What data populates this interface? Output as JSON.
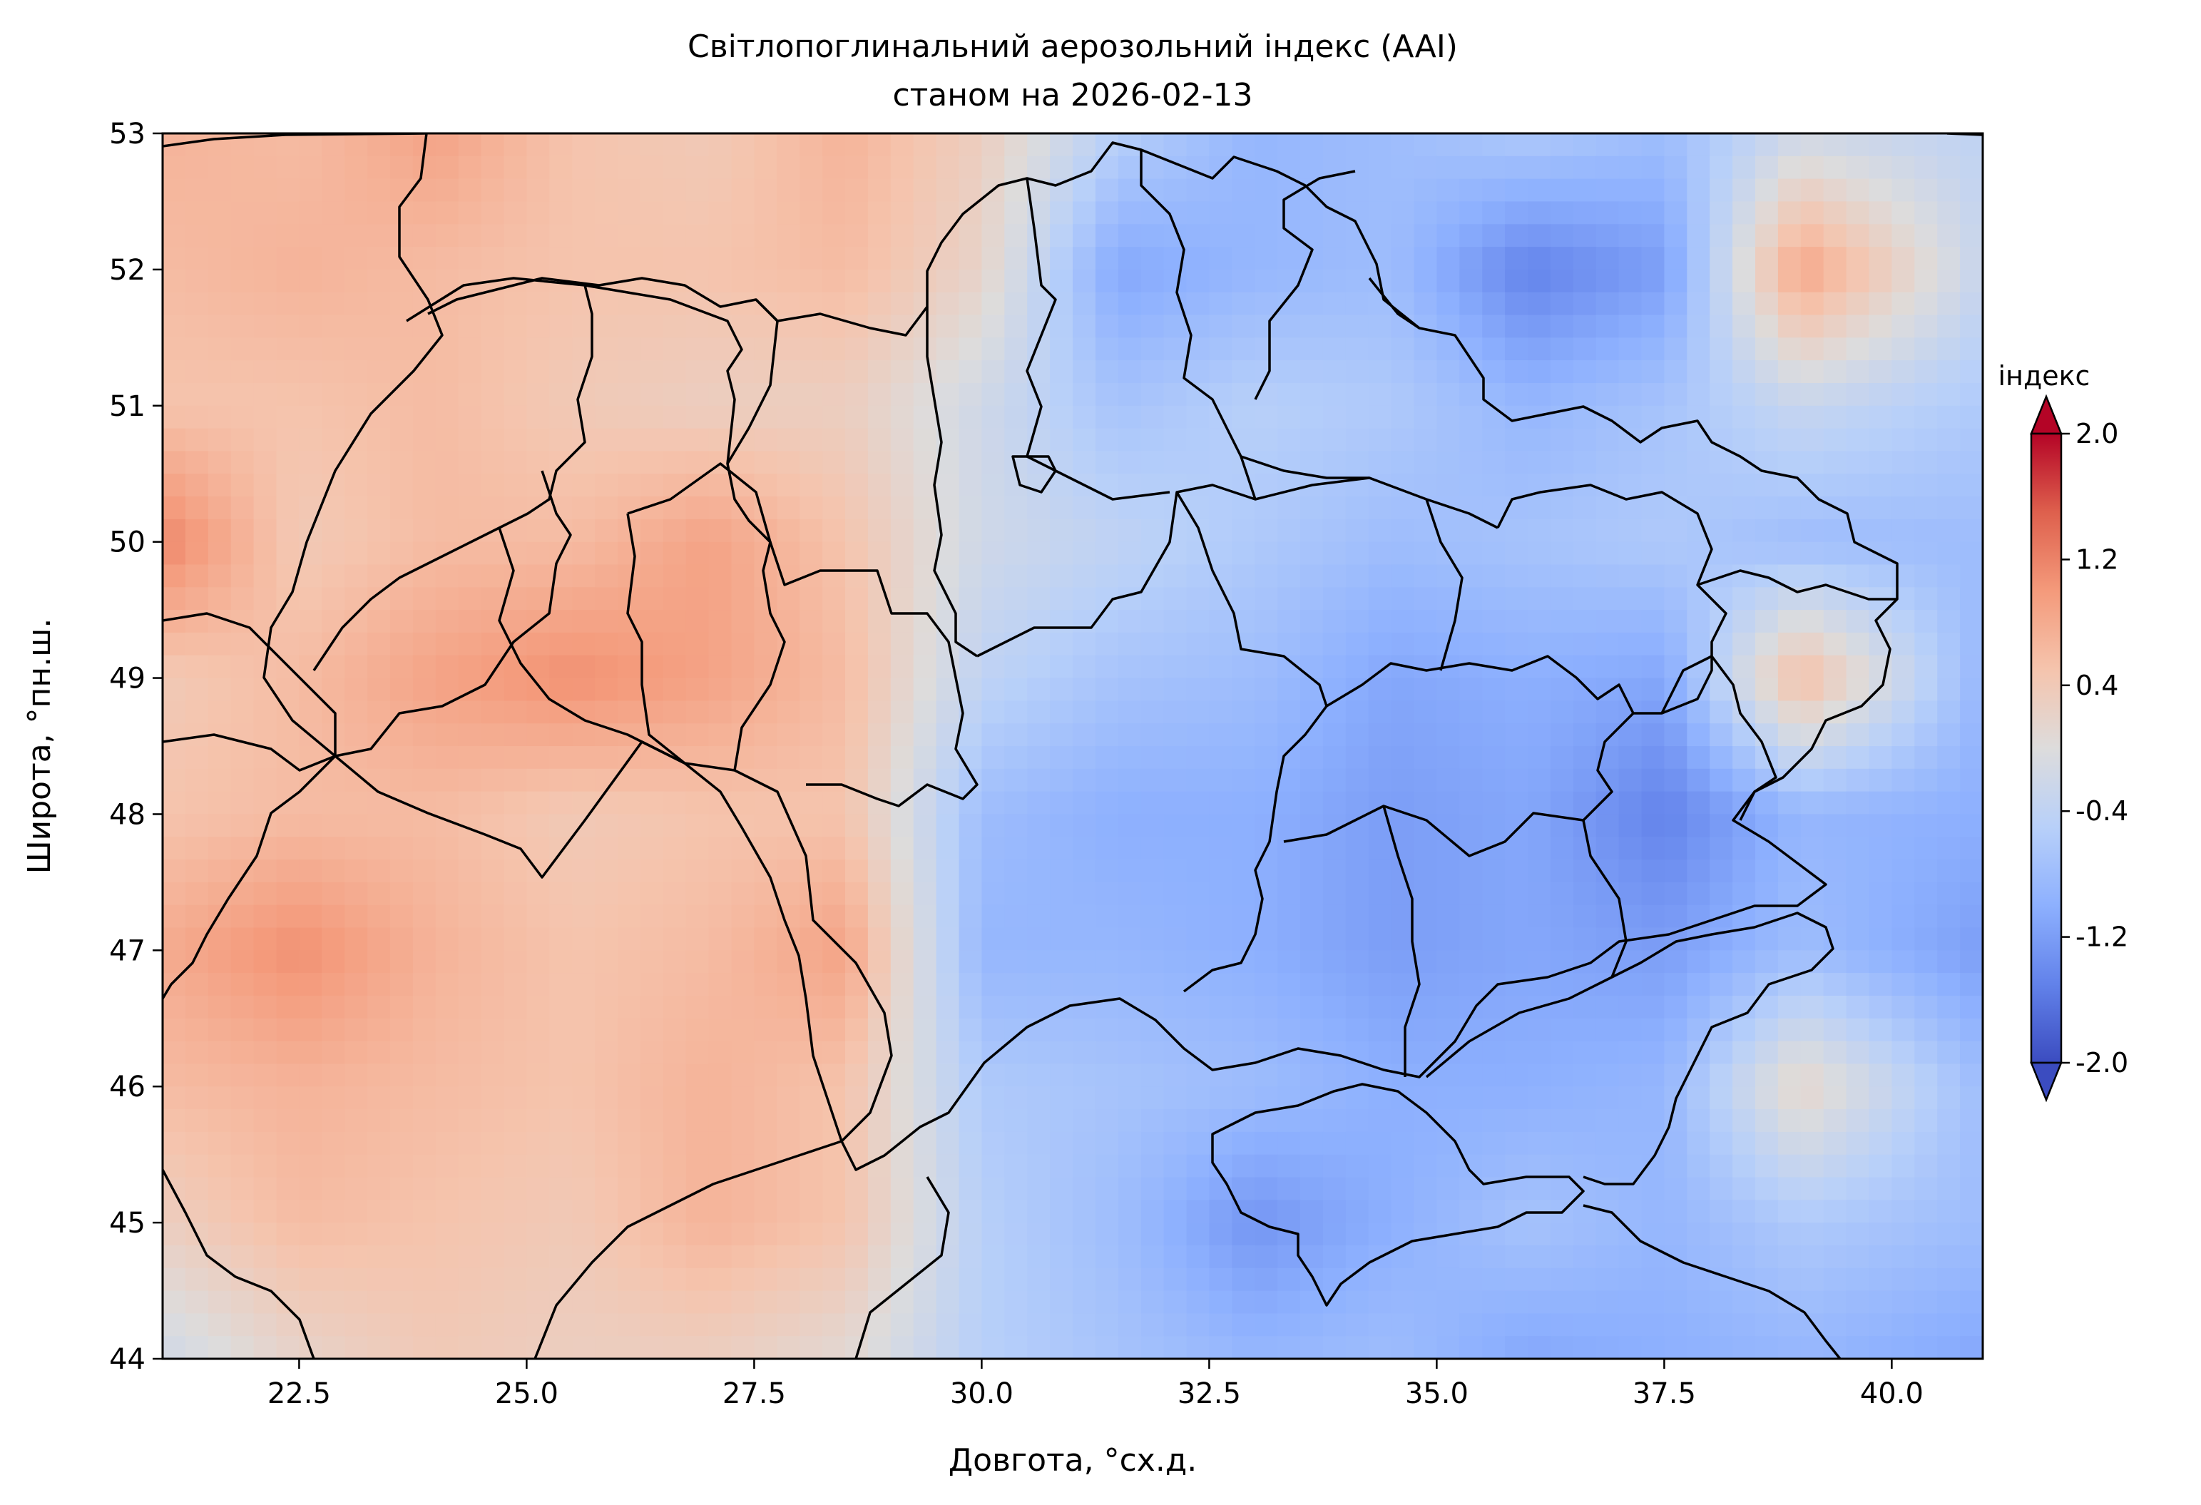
{
  "title": {
    "line1": "Світлопоглинальний аерозольний індекс (AAI)",
    "line2": "станом на 2026-02-13"
  },
  "x_axis": {
    "label": "Довгота, °сх.д.",
    "range": [
      21.0,
      41.0
    ],
    "ticks": [
      22.5,
      25.0,
      27.5,
      30.0,
      32.5,
      35.0,
      37.5,
      40.0
    ],
    "tick_labels": [
      "22.5",
      "25.0",
      "27.5",
      "30.0",
      "32.5",
      "35.0",
      "37.5",
      "40.0"
    ]
  },
  "y_axis": {
    "label": "Широта, °пн.ш.",
    "range": [
      44.0,
      53.0
    ],
    "ticks": [
      44,
      45,
      46,
      47,
      48,
      49,
      50,
      51,
      52,
      53
    ],
    "tick_labels": [
      "44",
      "45",
      "46",
      "47",
      "48",
      "49",
      "50",
      "51",
      "52",
      "53"
    ]
  },
  "colorbar": {
    "title": "індекс",
    "range": [
      -2.0,
      2.0
    ],
    "ticks": [
      -2.0,
      -1.2,
      -0.4,
      0.4,
      1.2,
      2.0
    ],
    "tick_labels": [
      "-2.0",
      "-1.2",
      "-0.4",
      "0.4",
      "1.2",
      "2.0"
    ],
    "colormap": "coolwarm",
    "extend": "both",
    "colors": {
      "low": "#3b4cc0",
      "mid": "#dddcdc",
      "high": "#b40426"
    }
  },
  "chart_data": {
    "type": "heatmap",
    "field": "AAI",
    "grid_lon": [
      21,
      22.5,
      24,
      25.5,
      27,
      28.5,
      30,
      31.5,
      33,
      34.5,
      36,
      37.5,
      39,
      41
    ],
    "grid_lat": [
      53,
      52,
      51,
      50,
      49,
      48,
      47,
      46,
      45,
      44
    ],
    "values": [
      [
        0.7,
        0.6,
        0.9,
        0.5,
        0.4,
        0.7,
        0.3,
        -0.5,
        -0.9,
        -0.8,
        -0.6,
        -0.8,
        -0.2,
        -0.4
      ],
      [
        0.6,
        0.7,
        0.6,
        0.5,
        0.5,
        0.6,
        0.2,
        -1.1,
        -0.9,
        -0.8,
        -1.5,
        -1.2,
        0.9,
        -0.3
      ],
      [
        0.5,
        0.5,
        0.6,
        0.4,
        0.3,
        0.3,
        -0.2,
        -0.7,
        -0.5,
        -0.6,
        -0.9,
        -0.7,
        -0.3,
        -0.6
      ],
      [
        1.2,
        0.4,
        0.6,
        0.6,
        0.9,
        0.5,
        -0.2,
        -0.4,
        -0.6,
        -0.8,
        -0.7,
        -0.6,
        -0.8,
        -0.8
      ],
      [
        0.4,
        0.6,
        0.9,
        1.1,
        0.9,
        0.6,
        -0.4,
        -0.7,
        -0.8,
        -1.1,
        -1.0,
        -1.1,
        0.6,
        -0.9
      ],
      [
        0.5,
        0.6,
        0.6,
        0.4,
        0.5,
        0.5,
        -0.8,
        -1.0,
        -1.0,
        -1.2,
        -1.1,
        -1.5,
        -0.9,
        -1.0
      ],
      [
        0.8,
        1.1,
        0.7,
        0.5,
        0.6,
        0.9,
        -0.9,
        -0.9,
        -1.0,
        -1.2,
        -1.1,
        -1.2,
        -0.8,
        -1.2
      ],
      [
        0.6,
        0.7,
        0.6,
        0.5,
        0.7,
        0.5,
        -0.6,
        -0.7,
        -0.8,
        -1.0,
        -1.0,
        -0.9,
        0.2,
        -0.8
      ],
      [
        0.3,
        0.6,
        0.5,
        0.4,
        0.7,
        0.5,
        -0.5,
        -0.8,
        -1.3,
        -1.0,
        -0.7,
        -0.9,
        -0.6,
        -0.8
      ],
      [
        -0.2,
        0.2,
        0.4,
        0.3,
        0.3,
        0.1,
        -0.5,
        -0.7,
        -0.9,
        -0.8,
        -1.1,
        -1.0,
        -0.9,
        -1.1
      ]
    ]
  }
}
